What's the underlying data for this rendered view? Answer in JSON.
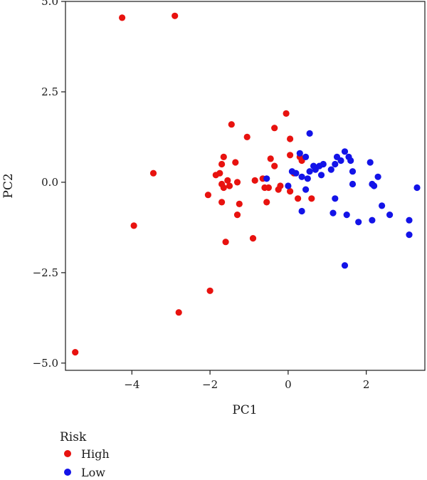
{
  "chart_data": {
    "type": "scatter",
    "title": "",
    "xlabel": "PC1",
    "ylabel": "PC2",
    "xlim": [
      -5.7,
      3.5
    ],
    "ylim": [
      -5.2,
      5.0
    ],
    "x_ticks": [
      -4,
      -2,
      0,
      2
    ],
    "x_tick_labels": [
      "−4",
      "−2",
      "0",
      "2"
    ],
    "y_ticks": [
      5.0,
      2.5,
      0.0,
      -2.5,
      -5.0
    ],
    "y_tick_labels": [
      "5.0",
      "2.5",
      "0.0",
      "−2.5",
      "−5.0"
    ],
    "grid": false,
    "legend": {
      "title": "Risk",
      "position": "bottom-left"
    },
    "series": [
      {
        "name": "High",
        "color": "#e8120f",
        "points": [
          [
            -4.25,
            4.55
          ],
          [
            -2.9,
            4.6
          ],
          [
            -3.45,
            0.25
          ],
          [
            -3.95,
            -1.2
          ],
          [
            -5.45,
            -4.7
          ],
          [
            -2.8,
            -3.6
          ],
          [
            -2.0,
            -3.0
          ],
          [
            -0.9,
            -1.55
          ],
          [
            -1.6,
            -1.65
          ],
          [
            -1.45,
            1.6
          ],
          [
            -1.05,
            1.25
          ],
          [
            -0.35,
            1.5
          ],
          [
            -0.05,
            1.9
          ],
          [
            0.05,
            1.2
          ],
          [
            -1.65,
            0.7
          ],
          [
            -1.7,
            0.5
          ],
          [
            -1.35,
            0.55
          ],
          [
            -1.85,
            0.2
          ],
          [
            -1.75,
            0.25
          ],
          [
            -1.7,
            -0.05
          ],
          [
            -1.55,
            0.05
          ],
          [
            -1.5,
            -0.1
          ],
          [
            -1.65,
            -0.15
          ],
          [
            -1.3,
            0.0
          ],
          [
            -0.85,
            0.05
          ],
          [
            -0.45,
            0.65
          ],
          [
            -0.35,
            0.45
          ],
          [
            -0.65,
            0.1
          ],
          [
            -0.6,
            -0.15
          ],
          [
            -0.5,
            -0.15
          ],
          [
            -0.25,
            -0.2
          ],
          [
            -0.2,
            -0.1
          ],
          [
            -2.05,
            -0.35
          ],
          [
            -1.7,
            -0.55
          ],
          [
            -1.25,
            -0.6
          ],
          [
            -1.3,
            -0.9
          ],
          [
            -0.55,
            -0.55
          ],
          [
            0.05,
            0.75
          ],
          [
            0.05,
            -0.25
          ],
          [
            0.25,
            -0.45
          ],
          [
            0.6,
            -0.45
          ],
          [
            0.35,
            0.6
          ],
          [
            0.3,
            0.7
          ],
          [
            0.15,
            0.25
          ]
        ]
      },
      {
        "name": "Low",
        "color": "#1313e8",
        "points": [
          [
            0.55,
            1.35
          ],
          [
            0.3,
            0.8
          ],
          [
            0.45,
            0.7
          ],
          [
            0.1,
            0.3
          ],
          [
            0.2,
            0.25
          ],
          [
            0.35,
            0.15
          ],
          [
            0.5,
            0.1
          ],
          [
            0.55,
            0.3
          ],
          [
            0.65,
            0.45
          ],
          [
            0.7,
            0.35
          ],
          [
            0.8,
            0.45
          ],
          [
            0.85,
            0.2
          ],
          [
            0.9,
            0.5
          ],
          [
            1.1,
            0.35
          ],
          [
            1.2,
            0.5
          ],
          [
            1.25,
            0.7
          ],
          [
            1.35,
            0.6
          ],
          [
            1.45,
            0.85
          ],
          [
            1.55,
            0.7
          ],
          [
            1.6,
            0.6
          ],
          [
            1.65,
            0.3
          ],
          [
            1.65,
            -0.05
          ],
          [
            2.1,
            0.55
          ],
          [
            2.15,
            -0.05
          ],
          [
            2.2,
            -0.1
          ],
          [
            2.3,
            0.15
          ],
          [
            -0.55,
            0.1
          ],
          [
            0.0,
            -0.1
          ],
          [
            0.45,
            -0.2
          ],
          [
            0.35,
            -0.8
          ],
          [
            1.15,
            -0.85
          ],
          [
            1.2,
            -0.45
          ],
          [
            1.5,
            -0.9
          ],
          [
            1.8,
            -1.1
          ],
          [
            2.15,
            -1.05
          ],
          [
            2.4,
            -0.65
          ],
          [
            2.6,
            -0.9
          ],
          [
            3.1,
            -1.05
          ],
          [
            3.1,
            -1.45
          ],
          [
            3.3,
            -0.15
          ],
          [
            1.45,
            -2.3
          ]
        ]
      }
    ]
  }
}
